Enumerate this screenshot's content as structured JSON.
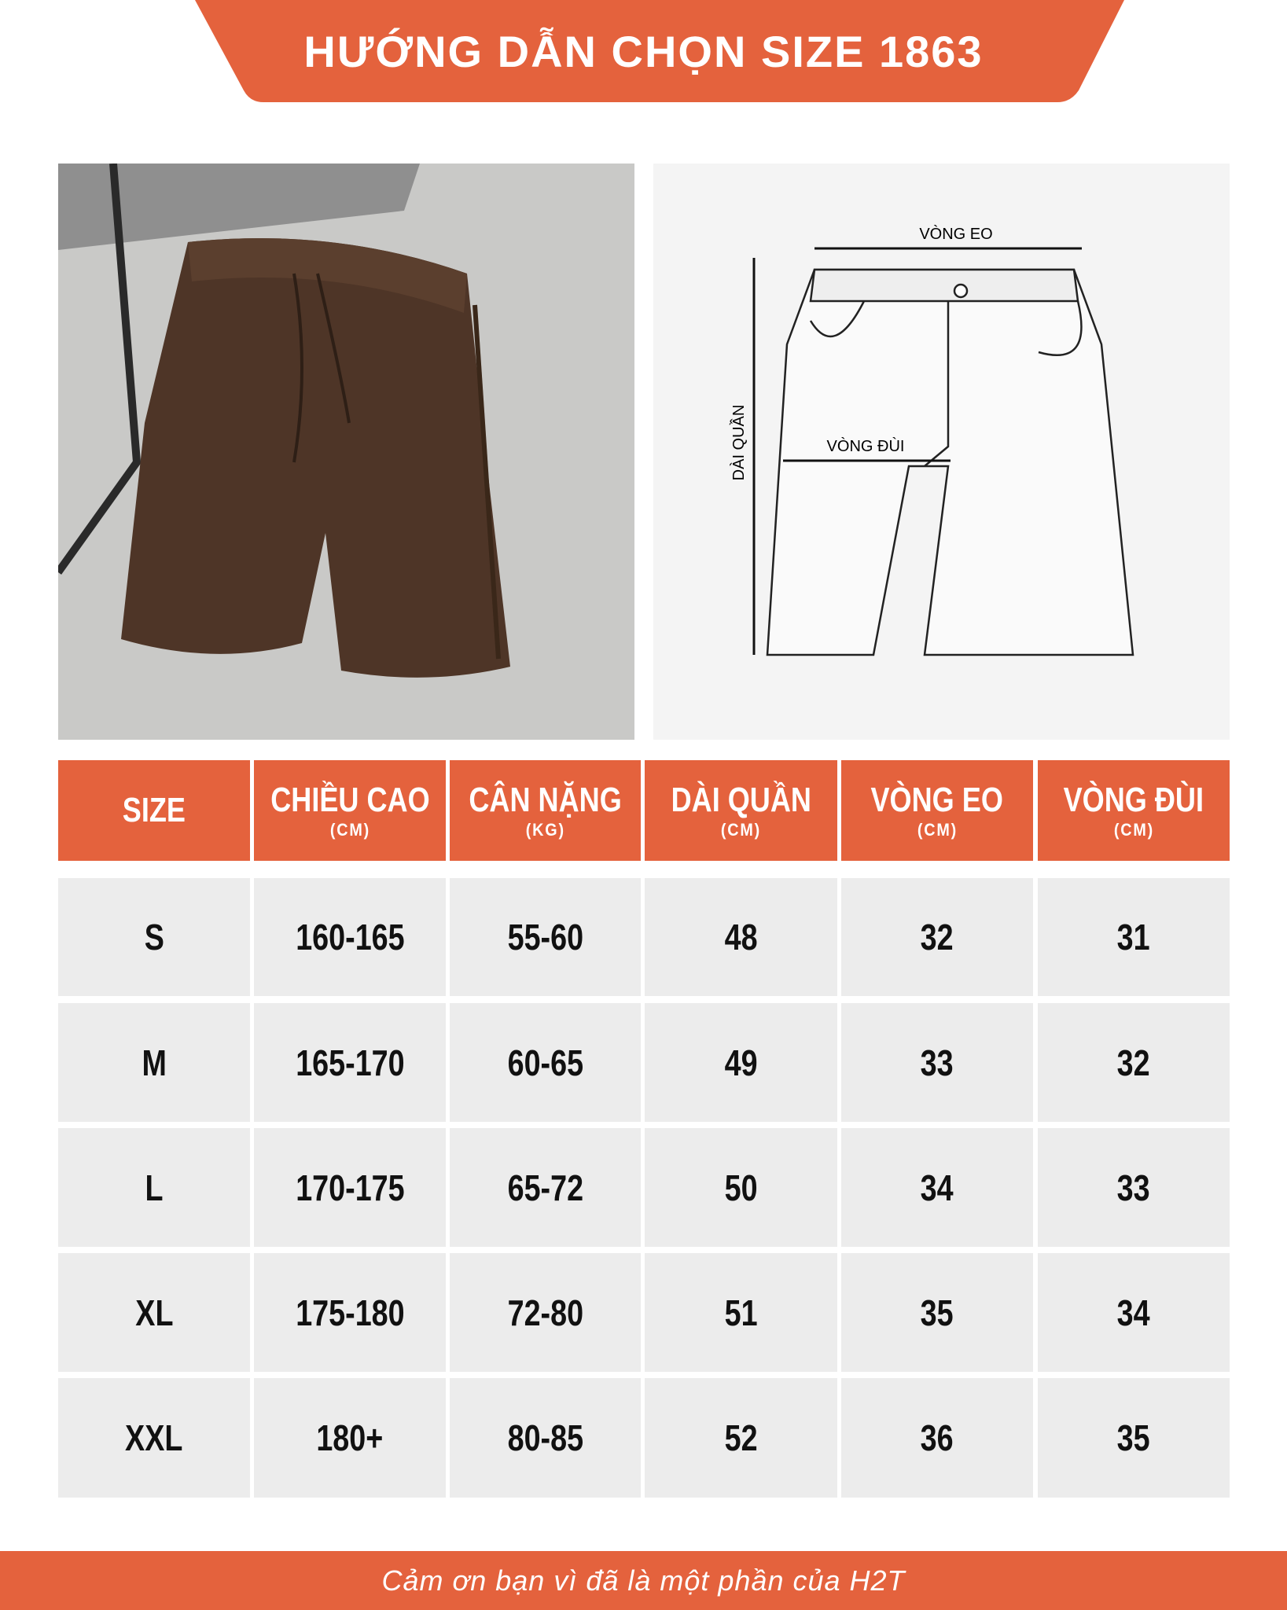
{
  "header": {
    "title": "HƯỚNG DẪN CHỌN SIZE 1863"
  },
  "diagram": {
    "waist": "VÒNG EO",
    "length": "DÀI QUẦN",
    "thigh": "VÒNG ĐÙI"
  },
  "table": {
    "columns": [
      {
        "label": "SIZE"
      },
      {
        "label": "CHIỀU CAO",
        "unit": "(CM)"
      },
      {
        "label": "CÂN NẶNG",
        "unit": "(KG)"
      },
      {
        "label": "DÀI QUẦN",
        "unit": "(CM)"
      },
      {
        "label": "VÒNG EO",
        "unit": "(CM)"
      },
      {
        "label": "VÒNG ĐÙI",
        "unit": "(CM)"
      }
    ],
    "rows": [
      [
        "S",
        "160-165",
        "55-60",
        "48",
        "32",
        "31"
      ],
      [
        "M",
        "165-170",
        "60-65",
        "49",
        "33",
        "32"
      ],
      [
        "L",
        "170-175",
        "65-72",
        "50",
        "34",
        "33"
      ],
      [
        "XL",
        "175-180",
        "72-80",
        "51",
        "35",
        "34"
      ],
      [
        "XXL",
        "180+",
        "80-85",
        "52",
        "36",
        "35"
      ]
    ]
  },
  "footer": {
    "text": "Cảm ơn bạn vì đã là một phần của H2T"
  }
}
